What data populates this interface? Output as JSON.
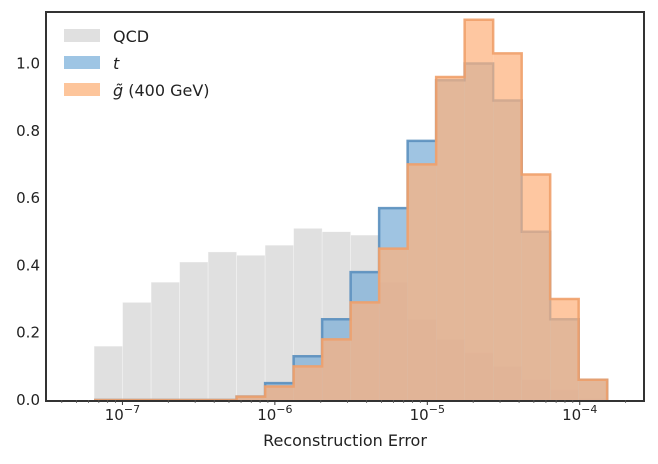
{
  "chart_data": {
    "type": "histogram",
    "xlabel": "Reconstruction Error",
    "ylabel": "",
    "xscale": "log",
    "xlim": [
      3.2e-08,
      0.00026
    ],
    "ylim": [
      0,
      1.15
    ],
    "yticks": [
      0.0,
      0.2,
      0.4,
      0.6,
      0.8,
      1.0
    ],
    "ytick_labels": [
      "0.0",
      "0.2",
      "0.4",
      "0.6",
      "0.8",
      "1.0"
    ],
    "xticks": [
      1e-07,
      1e-06,
      1e-05,
      0.0001
    ],
    "xtick_labels": [
      {
        "base": "10",
        "exp": "−7"
      },
      {
        "base": "10",
        "exp": "−6"
      },
      {
        "base": "10",
        "exp": "−5"
      },
      {
        "base": "10",
        "exp": "−4"
      }
    ],
    "bin_edges_log10": [
      -7.186,
      -6.999,
      -6.812,
      -6.625,
      -6.438,
      -6.251,
      -6.064,
      -5.877,
      -5.69,
      -5.503,
      -5.316,
      -5.129,
      -4.942,
      -4.755,
      -4.568,
      -4.381,
      -4.194,
      -4.007,
      -3.82
    ],
    "series": [
      {
        "name": "QCD",
        "legend": "QCD",
        "color": "#e0e0e0",
        "values": [
          0.16,
          0.29,
          0.35,
          0.41,
          0.44,
          0.43,
          0.46,
          0.51,
          0.5,
          0.49,
          0.35,
          0.24,
          0.18,
          0.14,
          0.1,
          0.06,
          0.03,
          0.005
        ]
      },
      {
        "name": "t",
        "legend": "t",
        "color": "#7fb0d8",
        "edge": "#5a8fbe",
        "values": [
          0,
          0,
          0,
          0,
          0,
          0.01,
          0.05,
          0.13,
          0.24,
          0.38,
          0.57,
          0.77,
          0.95,
          1.0,
          0.89,
          0.5,
          0.24,
          0.06
        ]
      },
      {
        "name": "gluino (400 GeV)",
        "legend_accent": "g̃",
        "legend_rest": " (400 GeV)",
        "color": "#fdb27d",
        "edge": "#f0a06a",
        "values": [
          0,
          0,
          0,
          0,
          0,
          0.01,
          0.04,
          0.1,
          0.18,
          0.29,
          0.45,
          0.7,
          0.96,
          1.13,
          1.03,
          0.67,
          0.3,
          0.06
        ]
      }
    ]
  }
}
